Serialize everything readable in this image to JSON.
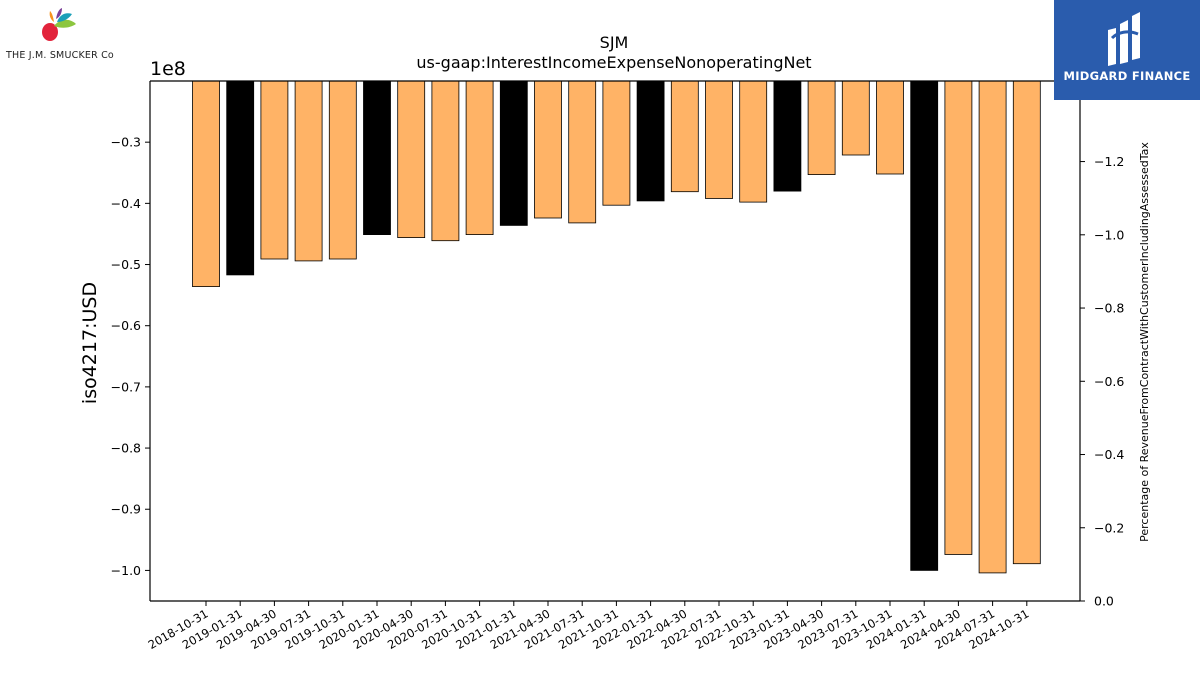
{
  "logos": {
    "left_text": "THE J.M. SMUCKER Co",
    "right_text": "MIDGARD FINANCE"
  },
  "chart_data": {
    "type": "bar",
    "title": "SJM",
    "subtitle": "us-gaap:InterestIncomeExpenseNonoperatingNet",
    "ylabel": "iso4217:USD",
    "y_scale_label": "1e8",
    "y2label": "Percentage of RevenueFromContractWithCustomerIncludingAssessedTax",
    "ylim": [
      -1.05,
      -0.2
    ],
    "y_ticks": [
      -0.3,
      -0.4,
      -0.5,
      -0.6,
      -0.7,
      -0.8,
      -0.9,
      -1.0
    ],
    "y_tick_labels": [
      "−0.3",
      "−0.4",
      "−0.5",
      "−0.6",
      "−0.7",
      "−0.8",
      "−0.9",
      "−1.0"
    ],
    "y2lim": [
      0.0,
      -1.42
    ],
    "y2_ticks": [
      -1.2,
      -1.0,
      -0.8,
      -0.6,
      -0.4,
      -0.2,
      0.0
    ],
    "y2_tick_labels": [
      "−1.2",
      "−1.0",
      "−0.8",
      "−0.6",
      "−0.4",
      "−0.2",
      "0.0"
    ],
    "categories": [
      "2018-10-31",
      "2019-01-31",
      "2019-04-30",
      "2019-07-31",
      "2019-10-31",
      "2020-01-31",
      "2020-04-30",
      "2020-07-31",
      "2020-10-31",
      "2021-01-31",
      "2021-04-30",
      "2021-07-31",
      "2021-10-31",
      "2022-01-31",
      "2022-04-30",
      "2022-07-31",
      "2022-10-31",
      "2023-01-31",
      "2023-04-30",
      "2023-07-31",
      "2023-10-31",
      "2024-01-31",
      "2024-04-30",
      "2024-07-31",
      "2024-10-31"
    ],
    "values": [
      -0.536,
      -0.517,
      -0.491,
      -0.494,
      -0.491,
      -0.451,
      -0.456,
      -0.461,
      -0.451,
      -0.436,
      -0.424,
      -0.432,
      -0.403,
      -0.396,
      -0.381,
      -0.392,
      -0.398,
      -0.38,
      -0.353,
      -0.321,
      -0.352,
      -1.0,
      -0.974,
      -1.004,
      -0.989
    ],
    "fiscal_q4": [
      false,
      true,
      false,
      false,
      false,
      true,
      false,
      false,
      false,
      true,
      false,
      false,
      false,
      true,
      false,
      false,
      false,
      true,
      false,
      false,
      false,
      true,
      false,
      false,
      false
    ],
    "colors": {
      "bar": "#ffb366",
      "q4_bar": "#000000",
      "edge": "#000000"
    },
    "grid": false,
    "legend": "none"
  }
}
